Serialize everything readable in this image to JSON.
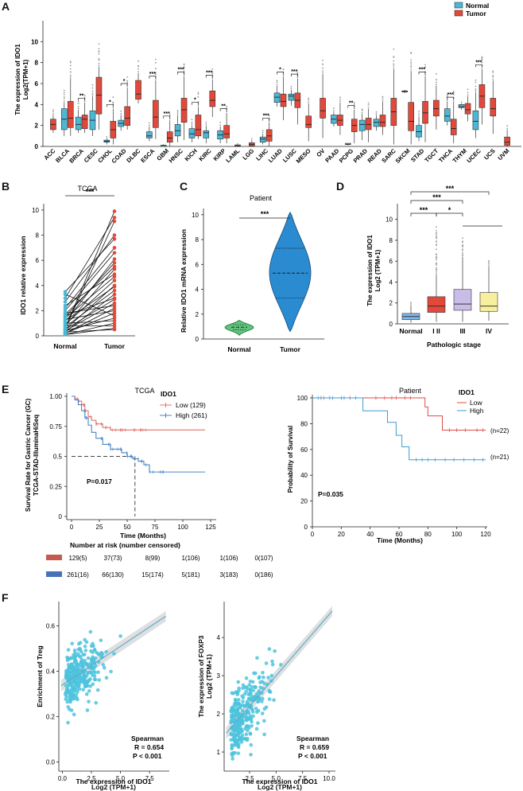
{
  "colors": {
    "normal": "#4bb8d5",
    "tumor": "#e2493b",
    "green": "#61c47d",
    "blue_violin": "#2b8bd0",
    "stage1": "#7fb6e8",
    "stage2": "#e2493b",
    "stage3": "#c9bde8",
    "stage4": "#f7ef9d",
    "km_low": "#e0726b",
    "km_high": "#4c86c6",
    "scatter": "#4ec3dd"
  },
  "panel_labels": [
    "A",
    "B",
    "C",
    "D",
    "E",
    "F"
  ],
  "panelA": {
    "ylabel1": "The expression of IDO1",
    "ylabel2": "Log2(TPM+1)",
    "yticks": [
      "0",
      "2",
      "4",
      "6",
      "8",
      "10"
    ],
    "legend": [
      {
        "label": "Normal"
      },
      {
        "label": "Tumor"
      }
    ],
    "chart_data": {
      "type": "box",
      "ylim": [
        0,
        12
      ],
      "cancers": [
        {
          "name": "ACC",
          "n": null,
          "t": [
            1.3,
            1.6,
            2.1,
            2.6,
            3.0
          ],
          "sig": ""
        },
        {
          "name": "BLCA",
          "n": [
            1.0,
            1.6,
            2.6,
            3.6,
            4.2
          ],
          "t": [
            1.0,
            1.8,
            2.7,
            4.3,
            6.5
          ],
          "sig": ""
        },
        {
          "name": "BRCA",
          "n": [
            1.3,
            1.6,
            2.1,
            2.8,
            3.5
          ],
          "t": [
            1.3,
            1.7,
            2.6,
            3.0,
            4.2
          ],
          "sig": "**"
        },
        {
          "name": "CESC",
          "n": [
            1.0,
            1.6,
            2.5,
            3.4,
            4.8
          ],
          "t": [
            1.6,
            3.1,
            4.9,
            6.6,
            7.6
          ],
          "sig": ""
        },
        {
          "name": "CHOL",
          "n": [
            0.2,
            0.4,
            0.5,
            0.6,
            0.8
          ],
          "t": [
            0.2,
            0.8,
            1.6,
            2.4,
            3.6
          ],
          "sig": "*"
        },
        {
          "name": "COAD",
          "n": [
            1.5,
            1.9,
            2.2,
            2.5,
            3.0
          ],
          "t": [
            1.6,
            2.0,
            2.7,
            3.8,
            5.6
          ],
          "sig": "*"
        },
        {
          "name": "DLBC",
          "n": null,
          "t": [
            4.1,
            4.5,
            5.0,
            6.3,
            7.0
          ],
          "sig": ""
        },
        {
          "name": "ESCA",
          "n": [
            0.5,
            0.8,
            1.0,
            1.4,
            1.9
          ],
          "t": [
            0.7,
            1.8,
            2.8,
            4.4,
            6.3
          ],
          "sig": "***"
        },
        {
          "name": "GBM",
          "n": [
            0.0,
            0.0,
            0.1,
            0.1,
            0.2
          ],
          "t": [
            0.0,
            0.4,
            0.8,
            1.4,
            2.5
          ],
          "sig": "***"
        },
        {
          "name": "HNSC",
          "n": [
            0.4,
            1.0,
            1.5,
            2.1,
            3.0
          ],
          "t": [
            0.6,
            2.3,
            3.5,
            4.6,
            6.7
          ],
          "sig": "***"
        },
        {
          "name": "KICH",
          "n": [
            0.4,
            0.8,
            1.2,
            1.7,
            2.0
          ],
          "t": [
            0.7,
            1.0,
            1.6,
            3.0,
            3.8
          ],
          "sig": "*"
        },
        {
          "name": "KIRC",
          "n": [
            0.3,
            0.8,
            1.3,
            1.5,
            2.0
          ],
          "t": [
            2.8,
            3.8,
            4.4,
            5.3,
            6.4
          ],
          "sig": "***"
        },
        {
          "name": "KIRP",
          "n": [
            0.3,
            0.7,
            1.1,
            1.5,
            1.9
          ],
          "t": [
            0.3,
            0.8,
            1.2,
            2.0,
            3.2
          ],
          "sig": "**"
        },
        {
          "name": "LAML",
          "n": null,
          "t": [
            0.0,
            0.0,
            0.05,
            0.15,
            0.3
          ],
          "sig": ""
        },
        {
          "name": "LGG",
          "n": null,
          "t": [
            0.0,
            0.05,
            0.2,
            0.35,
            0.6
          ],
          "sig": ""
        },
        {
          "name": "LIHC",
          "n": [
            0.2,
            0.4,
            0.7,
            0.9,
            1.2
          ],
          "t": [
            0.0,
            0.5,
            1.0,
            1.6,
            2.3
          ],
          "sig": "***"
        },
        {
          "name": "LUAD",
          "n": [
            3.8,
            4.2,
            4.7,
            5.1,
            5.8
          ],
          "t": [
            2.5,
            3.8,
            4.3,
            5.0,
            6.7
          ],
          "sig": "*"
        },
        {
          "name": "LUSC",
          "n": [
            3.9,
            4.4,
            4.8,
            5.0,
            5.4
          ],
          "t": [
            2.1,
            3.7,
            4.4,
            5.1,
            6.5
          ],
          "sig": "***"
        },
        {
          "name": "MESO",
          "n": null,
          "t": [
            0.5,
            1.8,
            2.1,
            2.9,
            4.1
          ],
          "sig": ""
        },
        {
          "name": "OV",
          "n": null,
          "t": [
            0.8,
            2.7,
            3.4,
            4.6,
            6.9
          ],
          "sig": ""
        },
        {
          "name": "PAAD",
          "n": [
            1.9,
            2.2,
            2.6,
            3.0,
            3.3
          ],
          "t": [
            1.1,
            2.0,
            2.5,
            3.0,
            4.2
          ],
          "sig": ""
        },
        {
          "name": "PCPG",
          "n": [
            0.1,
            0.2,
            0.2,
            0.3,
            0.3
          ],
          "t": [
            0.3,
            1.4,
            2.0,
            2.6,
            3.5
          ],
          "sig": "**"
        },
        {
          "name": "PRAD",
          "n": [
            0.6,
            1.5,
            2.1,
            2.5,
            3.1
          ],
          "t": [
            0.4,
            1.6,
            2.1,
            2.7,
            3.6
          ],
          "sig": ""
        },
        {
          "name": "READ",
          "n": [
            1.5,
            1.9,
            2.3,
            2.6,
            3.0
          ],
          "t": [
            1.1,
            1.9,
            2.3,
            3.0,
            4.3
          ],
          "sig": ""
        },
        {
          "name": "SARC",
          "n": null,
          "t": [
            0.2,
            2.0,
            3.3,
            4.6,
            7.4
          ],
          "sig": ""
        },
        {
          "name": "SKCM",
          "n": [
            5.1,
            5.2,
            5.25,
            5.3,
            5.4
          ],
          "t": [
            0.2,
            1.5,
            2.4,
            4.2,
            7.2
          ],
          "sig": ""
        },
        {
          "name": "STAD",
          "n": [
            0.5,
            0.9,
            1.4,
            2.0,
            2.8
          ],
          "t": [
            0.4,
            2.2,
            3.2,
            4.3,
            6.7
          ],
          "sig": "***"
        },
        {
          "name": "TGCT",
          "n": null,
          "t": [
            1.6,
            2.9,
            3.6,
            4.4,
            5.8
          ],
          "sig": ""
        },
        {
          "name": "THCA",
          "n": [
            2.0,
            2.4,
            2.9,
            3.6,
            4.3
          ],
          "t": [
            0.3,
            1.1,
            1.7,
            2.6,
            4.3
          ],
          "sig": "***"
        },
        {
          "name": "THYM",
          "n": [
            3.5,
            3.7,
            3.8,
            4.0,
            4.1
          ],
          "t": [
            2.4,
            3.1,
            3.5,
            4.1,
            4.8
          ],
          "sig": ""
        },
        {
          "name": "UCEC",
          "n": [
            0.8,
            1.6,
            2.4,
            3.4,
            5.2
          ],
          "t": [
            2.1,
            3.7,
            4.8,
            5.9,
            7.4
          ],
          "sig": "***"
        },
        {
          "name": "UCS",
          "n": null,
          "t": [
            1.2,
            2.9,
            3.6,
            4.6,
            6.3
          ],
          "sig": ""
        },
        {
          "name": "UVM",
          "n": null,
          "t": [
            0.0,
            0.1,
            0.4,
            0.9,
            1.6
          ],
          "sig": ""
        }
      ]
    }
  },
  "panelB": {
    "title": "TCGA",
    "ylabel": "IDO1 relative expression",
    "yticks": [
      "0",
      "2",
      "4",
      "6",
      "8",
      "10"
    ],
    "xticks": [
      "Normal",
      "Tumor"
    ],
    "sig": "***",
    "chart_data": {
      "type": "paired-dot",
      "ylim": [
        0,
        10.5
      ],
      "pairs": [
        [
          0.1,
          1.0
        ],
        [
          0.1,
          0.6
        ],
        [
          0.2,
          1.8
        ],
        [
          0.2,
          2.2
        ],
        [
          0.3,
          0.5
        ],
        [
          0.3,
          3.3
        ],
        [
          0.4,
          2.6
        ],
        [
          0.4,
          1.4
        ],
        [
          0.5,
          4.0
        ],
        [
          0.5,
          2.9
        ],
        [
          0.6,
          9.1
        ],
        [
          0.7,
          3.6
        ],
        [
          0.8,
          0.8
        ],
        [
          0.8,
          5.3
        ],
        [
          0.9,
          4.4
        ],
        [
          1.0,
          1.2
        ],
        [
          1.1,
          6.1
        ],
        [
          1.2,
          3.9
        ],
        [
          1.3,
          2.0
        ],
        [
          1.4,
          4.7
        ],
        [
          1.5,
          5.8
        ],
        [
          1.6,
          3.0
        ],
        [
          1.7,
          5.5
        ],
        [
          1.8,
          2.4
        ],
        [
          2.0,
          6.6
        ],
        [
          2.2,
          7.0
        ],
        [
          2.4,
          4.9
        ],
        [
          2.7,
          8.0
        ],
        [
          3.0,
          9.4
        ],
        [
          3.3,
          1.6
        ],
        [
          3.5,
          7.7
        ],
        [
          0.6,
          9.9
        ]
      ]
    }
  },
  "panelC": {
    "title": "Patient",
    "ylabel": "Relative IDO1 mRNA expression",
    "yticks": [
      "0",
      "2",
      "4",
      "6",
      "8",
      "10"
    ],
    "xticks": [
      "Normal",
      "Tumor"
    ],
    "sig": "***",
    "chart_data": {
      "type": "violin",
      "ylim": [
        0,
        10.5
      ],
      "normal": {
        "min": 0.3,
        "q1": 0.75,
        "median": 0.95,
        "q3": 1.15,
        "max": 1.5
      },
      "tumor": {
        "min": 0.6,
        "q1": 3.3,
        "median": 5.3,
        "q3": 7.3,
        "max": 10.2
      }
    }
  },
  "panelD": {
    "ylabel1": "The expression of IDO1",
    "ylabel2": "Log2 (TPM+1)",
    "xlabel": "Pathologic stage",
    "yticks": [
      "0",
      "2",
      "4",
      "6",
      "8",
      "10"
    ],
    "xticks": [
      "Normal",
      "I II",
      "III",
      "IV"
    ],
    "sigs": [
      "***",
      "***",
      "***",
      "*"
    ],
    "chart_data": {
      "type": "box",
      "ylim": [
        0,
        11.5
      ],
      "groups": [
        {
          "name": "Normal",
          "q": [
            0.1,
            0.4,
            0.7,
            1.0,
            1.8
          ]
        },
        {
          "name": "I II",
          "q": [
            0.2,
            1.1,
            1.7,
            2.6,
            4.7
          ]
        },
        {
          "name": "III",
          "q": [
            0.2,
            1.3,
            1.9,
            3.3,
            6.4
          ]
        },
        {
          "name": "IV",
          "q": [
            0.3,
            1.2,
            1.7,
            3.0,
            5.5
          ]
        }
      ]
    }
  },
  "panelE1": {
    "title": "TCGA",
    "ylabel1": "Survival Rate for Gastric Cancer (GC)",
    "ylabel2": "TCGA-STAD-IlluminaHiSeq",
    "xlabel": "Time (Months)",
    "yticks": [
      "0",
      "0.25",
      "0.5",
      "0.75",
      "1.00"
    ],
    "xticks": [
      "0",
      "25",
      "50",
      "75",
      "100",
      "125"
    ],
    "legend_title": "IDO1",
    "legend": [
      {
        "label": "Low (129)"
      },
      {
        "label": "High (261)"
      }
    ],
    "pvalue": "P=0.017",
    "risk_title": "Number at risk (number censored)",
    "risk_low": [
      "129(5)",
      "37(73)",
      "8(99)",
      "1(106)",
      "1(106)",
      "0(107)"
    ],
    "risk_high": [
      "261(16)",
      "66(130)",
      "15(174)",
      "5(181)",
      "3(183)",
      "0(186)"
    ],
    "chart_data": {
      "type": "kaplan-meier",
      "xlim": [
        0,
        125
      ],
      "ylim": [
        0,
        1
      ],
      "series": [
        {
          "name": "Low (129)",
          "points": [
            [
              0,
              1.0
            ],
            [
              3,
              0.98
            ],
            [
              6,
              0.96
            ],
            [
              9,
              0.93
            ],
            [
              12,
              0.88
            ],
            [
              15,
              0.83
            ],
            [
              18,
              0.8
            ],
            [
              22,
              0.77
            ],
            [
              28,
              0.74
            ],
            [
              35,
              0.72
            ],
            [
              120,
              0.72
            ]
          ]
        },
        {
          "name": "High (261)",
          "points": [
            [
              0,
              1.0
            ],
            [
              3,
              0.97
            ],
            [
              6,
              0.93
            ],
            [
              9,
              0.88
            ],
            [
              12,
              0.82
            ],
            [
              15,
              0.76
            ],
            [
              18,
              0.7
            ],
            [
              22,
              0.65
            ],
            [
              28,
              0.6
            ],
            [
              35,
              0.56
            ],
            [
              45,
              0.53
            ],
            [
              50,
              0.5
            ],
            [
              55,
              0.48
            ],
            [
              60,
              0.46
            ],
            [
              65,
              0.43
            ],
            [
              70,
              0.37
            ],
            [
              120,
              0.37
            ]
          ]
        }
      ],
      "median_high": 57
    }
  },
  "panelE2": {
    "title": "Patient",
    "ylabel": "Probability of Survival",
    "xlabel": "Time (Months)",
    "yticks": [
      "0",
      "20",
      "40",
      "60",
      "80",
      "100"
    ],
    "xticks": [
      "0",
      "20",
      "40",
      "60",
      "80",
      "100",
      "120"
    ],
    "legend_title": "IDO1",
    "legend": [
      {
        "label": "Low"
      },
      {
        "label": "High"
      }
    ],
    "n_low": "(n=22)",
    "n_high": "(n=21)",
    "pvalue": "P=0.035",
    "chart_data": {
      "type": "kaplan-meier",
      "xlim": [
        0,
        125
      ],
      "ylim": [
        0,
        100
      ],
      "series": [
        {
          "name": "Low",
          "points": [
            [
              0,
              100
            ],
            [
              78,
              100
            ],
            [
              78,
              93
            ],
            [
              80,
              93
            ],
            [
              80,
              86
            ],
            [
              90,
              86
            ],
            [
              90,
              75
            ],
            [
              120,
              75
            ]
          ]
        },
        {
          "name": "High",
          "points": [
            [
              0,
              100
            ],
            [
              35,
              100
            ],
            [
              35,
              90
            ],
            [
              52,
              90
            ],
            [
              52,
              81
            ],
            [
              58,
              81
            ],
            [
              58,
              71
            ],
            [
              62,
              71
            ],
            [
              62,
              62
            ],
            [
              67,
              62
            ],
            [
              67,
              52
            ],
            [
              120,
              52
            ]
          ]
        }
      ]
    }
  },
  "panelF1": {
    "ylabel": "Enrichment of Treg",
    "xlabel1": "The expression of IDO1",
    "xlabel2": "Log2 (TPM+1)",
    "xticks": [
      "0.0",
      "2.5",
      "5.0",
      "7.5"
    ],
    "yticks": [
      "0.0",
      "0.2",
      "0.4",
      "0.6"
    ],
    "stats": [
      "Spearman",
      "R = 0.654",
      "P < 0.001"
    ],
    "chart_data": {
      "type": "scatter",
      "xlim": [
        -0.3,
        9.2
      ],
      "ylim": [
        -0.04,
        0.7
      ],
      "spearman_r": 0.654,
      "slope": 0.034,
      "intercept": 0.34,
      "n_points": 300
    }
  },
  "panelF2": {
    "ylabel1": "The expression of FOXP3",
    "ylabel2": "Log2 (TPM+1)",
    "xlabel1": "The expression of IDO1",
    "xlabel2": "Log2 (TPM+1)",
    "xticks": [
      "2.5",
      "5.0",
      "7.5",
      "10.0"
    ],
    "yticks": [
      "1",
      "2",
      "3",
      "4"
    ],
    "stats": [
      "Spearman",
      "R = 0.659",
      "P < 0.001"
    ],
    "chart_data": {
      "type": "scatter",
      "xlim": [
        0.1,
        10.6
      ],
      "ylim": [
        0.5,
        4.9
      ],
      "spearman_r": 0.659,
      "slope": 0.32,
      "intercept": 1.4,
      "n_points": 300
    }
  }
}
